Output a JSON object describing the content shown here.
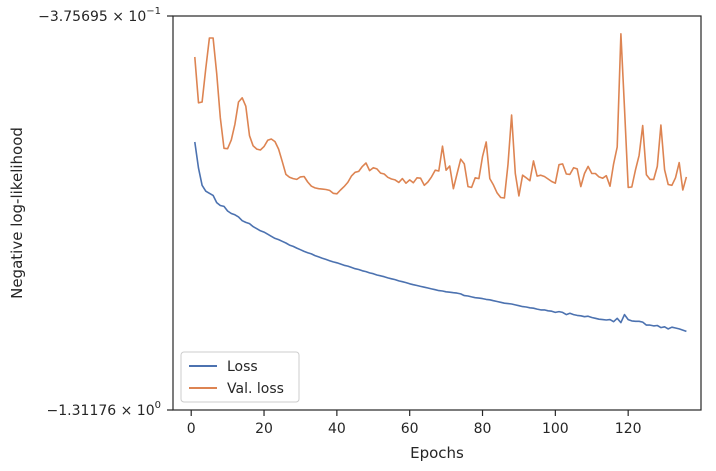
{
  "chart_data": {
    "type": "line",
    "title": "",
    "xlabel": "Epochs",
    "ylabel": "Negative log-likelihood",
    "xlim": [
      -5,
      140
    ],
    "ylim": [
      -1.31176,
      -0.375695
    ],
    "x_ticks": [
      {
        "value": 0,
        "label": "0"
      },
      {
        "value": 20,
        "label": "20"
      },
      {
        "value": 40,
        "label": "40"
      },
      {
        "value": 60,
        "label": "60"
      },
      {
        "value": 80,
        "label": "80"
      },
      {
        "value": 100,
        "label": "100"
      },
      {
        "value": 120,
        "label": "120"
      }
    ],
    "y_ticks": [
      {
        "value": -0.375695,
        "label": "−3.75695 × 10",
        "exp": "−1"
      },
      {
        "value": -1.31176,
        "label": "−1.31176 × 10",
        "exp": "0"
      }
    ],
    "grid": false,
    "legend_position": "lower-left",
    "colors": {
      "loss": "#4c72b0",
      "val_loss": "#dd8452",
      "axis": "#262626"
    },
    "series": [
      {
        "name": "Loss",
        "x": [
          1,
          2,
          3,
          4,
          5,
          6,
          7,
          8,
          9,
          10,
          11,
          12,
          13,
          14,
          15,
          16,
          17,
          18,
          19,
          20,
          21,
          22,
          23,
          24,
          25,
          26,
          27,
          28,
          29,
          30,
          31,
          32,
          33,
          34,
          35,
          36,
          37,
          38,
          39,
          40,
          41,
          42,
          43,
          44,
          45,
          46,
          47,
          48,
          49,
          50,
          51,
          52,
          53,
          54,
          55,
          56,
          57,
          58,
          59,
          60,
          61,
          62,
          63,
          64,
          65,
          66,
          67,
          68,
          69,
          70,
          71,
          72,
          73,
          74,
          75,
          76,
          77,
          78,
          79,
          80,
          81,
          82,
          83,
          84,
          85,
          86,
          87,
          88,
          89,
          90,
          91,
          92,
          93,
          94,
          95,
          96,
          97,
          98,
          99,
          100,
          101,
          102,
          103,
          104,
          105,
          106,
          107,
          108,
          109,
          110,
          111,
          112,
          113,
          114,
          115,
          116,
          117,
          118,
          119,
          120,
          121,
          122,
          123,
          124,
          125,
          126,
          127,
          128,
          129,
          130,
          131,
          132,
          133,
          134,
          135,
          136
        ],
        "values": [
          -0.675,
          -0.737,
          -0.778,
          -0.792,
          -0.797,
          -0.802,
          -0.819,
          -0.826,
          -0.828,
          -0.839,
          -0.845,
          -0.848,
          -0.853,
          -0.862,
          -0.866,
          -0.869,
          -0.876,
          -0.881,
          -0.886,
          -0.889,
          -0.894,
          -0.899,
          -0.904,
          -0.907,
          -0.911,
          -0.915,
          -0.92,
          -0.923,
          -0.927,
          -0.931,
          -0.935,
          -0.938,
          -0.941,
          -0.945,
          -0.948,
          -0.951,
          -0.954,
          -0.957,
          -0.96,
          -0.962,
          -0.965,
          -0.968,
          -0.97,
          -0.973,
          -0.976,
          -0.978,
          -0.981,
          -0.983,
          -0.986,
          -0.988,
          -0.991,
          -0.993,
          -0.995,
          -0.998,
          -1.0,
          -1.002,
          -1.005,
          -1.007,
          -1.009,
          -1.012,
          -1.014,
          -1.016,
          -1.018,
          -1.02,
          -1.022,
          -1.024,
          -1.026,
          -1.028,
          -1.029,
          -1.031,
          -1.032,
          -1.033,
          -1.034,
          -1.036,
          -1.04,
          -1.041,
          -1.043,
          -1.045,
          -1.046,
          -1.047,
          -1.049,
          -1.05,
          -1.052,
          -1.054,
          -1.056,
          -1.058,
          -1.059,
          -1.06,
          -1.062,
          -1.064,
          -1.066,
          -1.067,
          -1.069,
          -1.07,
          -1.072,
          -1.074,
          -1.074,
          -1.076,
          -1.077,
          -1.08,
          -1.078,
          -1.08,
          -1.085,
          -1.082,
          -1.085,
          -1.087,
          -1.088,
          -1.09,
          -1.089,
          -1.092,
          -1.094,
          -1.096,
          -1.097,
          -1.098,
          -1.097,
          -1.102,
          -1.094,
          -1.104,
          -1.085,
          -1.097,
          -1.1,
          -1.101,
          -1.101,
          -1.103,
          -1.11,
          -1.11,
          -1.112,
          -1.111,
          -1.116,
          -1.114,
          -1.119,
          -1.115,
          -1.117,
          -1.119,
          -1.122,
          -1.125
        ]
      },
      {
        "name": "Val. loss",
        "x": [
          1,
          2,
          3,
          4,
          5,
          6,
          7,
          8,
          9,
          10,
          11,
          12,
          13,
          14,
          15,
          16,
          17,
          18,
          19,
          20,
          21,
          22,
          23,
          24,
          25,
          26,
          27,
          28,
          29,
          30,
          31,
          32,
          33,
          34,
          35,
          36,
          37,
          38,
          39,
          40,
          41,
          42,
          43,
          44,
          45,
          46,
          47,
          48,
          49,
          50,
          51,
          52,
          53,
          54,
          55,
          56,
          57,
          58,
          59,
          60,
          61,
          62,
          63,
          64,
          65,
          66,
          67,
          68,
          69,
          70,
          71,
          72,
          73,
          74,
          75,
          76,
          77,
          78,
          79,
          80,
          81,
          82,
          83,
          84,
          85,
          86,
          87,
          88,
          89,
          90,
          91,
          92,
          93,
          94,
          95,
          96,
          97,
          98,
          99,
          100,
          101,
          102,
          103,
          104,
          105,
          106,
          107,
          108,
          109,
          110,
          111,
          112,
          113,
          114,
          115,
          116,
          117,
          118,
          119,
          120,
          121,
          122,
          123,
          124,
          125,
          126,
          127,
          128,
          129,
          130,
          131,
          132,
          133,
          134,
          135,
          136
        ],
        "values": [
          -0.473,
          -0.582,
          -0.58,
          -0.5,
          -0.428,
          -0.428,
          -0.512,
          -0.617,
          -0.69,
          -0.691,
          -0.67,
          -0.633,
          -0.58,
          -0.57,
          -0.59,
          -0.66,
          -0.684,
          -0.692,
          -0.694,
          -0.686,
          -0.671,
          -0.668,
          -0.674,
          -0.692,
          -0.721,
          -0.752,
          -0.759,
          -0.762,
          -0.764,
          -0.758,
          -0.757,
          -0.77,
          -0.78,
          -0.784,
          -0.786,
          -0.787,
          -0.788,
          -0.79,
          -0.797,
          -0.798,
          -0.789,
          -0.781,
          -0.771,
          -0.756,
          -0.747,
          -0.745,
          -0.733,
          -0.725,
          -0.743,
          -0.736,
          -0.739,
          -0.749,
          -0.751,
          -0.759,
          -0.763,
          -0.765,
          -0.771,
          -0.762,
          -0.773,
          -0.765,
          -0.772,
          -0.76,
          -0.761,
          -0.778,
          -0.77,
          -0.758,
          -0.742,
          -0.744,
          -0.685,
          -0.742,
          -0.732,
          -0.786,
          -0.751,
          -0.716,
          -0.727,
          -0.781,
          -0.783,
          -0.76,
          -0.762,
          -0.71,
          -0.675,
          -0.762,
          -0.777,
          -0.796,
          -0.807,
          -0.808,
          -0.728,
          -0.611,
          -0.75,
          -0.803,
          -0.754,
          -0.76,
          -0.767,
          -0.72,
          -0.756,
          -0.754,
          -0.757,
          -0.763,
          -0.769,
          -0.773,
          -0.729,
          -0.727,
          -0.751,
          -0.752,
          -0.736,
          -0.739,
          -0.781,
          -0.75,
          -0.733,
          -0.75,
          -0.75,
          -0.758,
          -0.761,
          -0.755,
          -0.78,
          -0.727,
          -0.687,
          -0.418,
          -0.595,
          -0.783,
          -0.782,
          -0.741,
          -0.707,
          -0.636,
          -0.753,
          -0.764,
          -0.764,
          -0.733,
          -0.635,
          -0.741,
          -0.776,
          -0.778,
          -0.76,
          -0.724,
          -0.789,
          -0.758
        ]
      }
    ]
  }
}
